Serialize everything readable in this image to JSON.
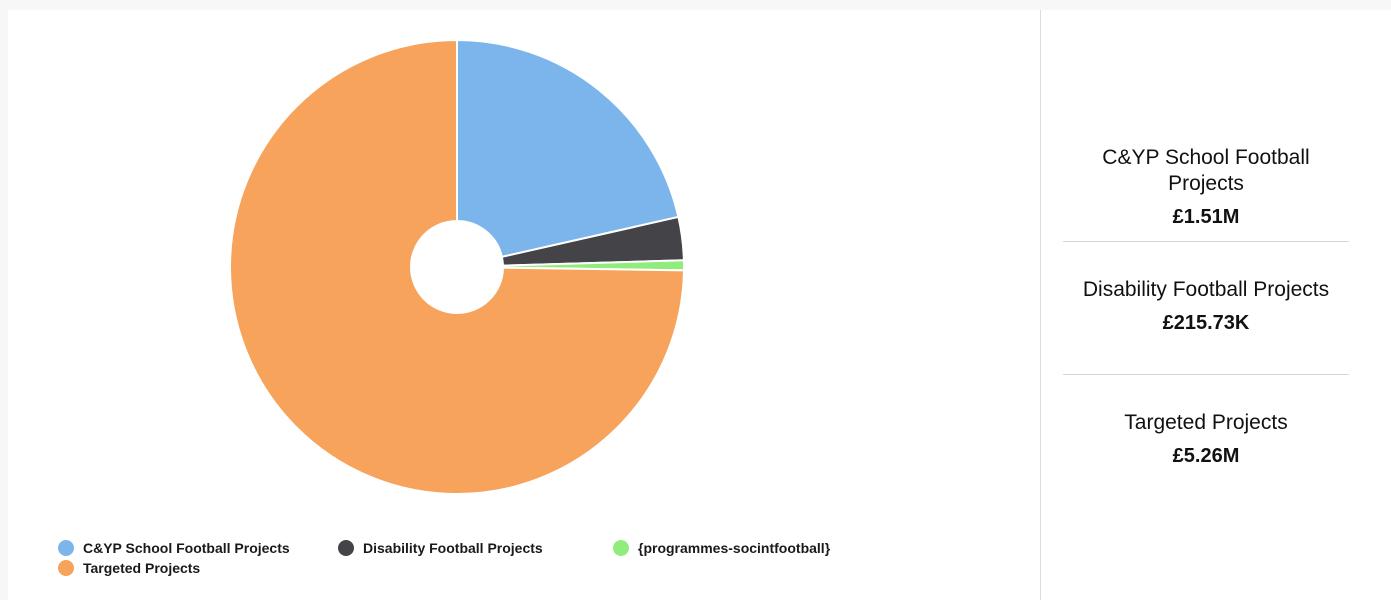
{
  "chart_data": {
    "type": "pie",
    "donut": true,
    "series": [
      {
        "name": "C&YP School Football Projects",
        "value": 1.51,
        "unit": "M",
        "color": "#7cb5ec"
      },
      {
        "name": "Disability Football Projects",
        "value": 0.21573,
        "unit": "M",
        "color": "#434348"
      },
      {
        "name": "{programmes-socintfootball}",
        "value": 0.05,
        "unit": "M",
        "color": "#90ed7d"
      },
      {
        "name": "Targeted Projects",
        "value": 5.26,
        "unit": "M",
        "color": "#f7a35c"
      }
    ],
    "legend_position": "bottom-left"
  },
  "legend": {
    "items": [
      "C&YP School Football Projects",
      "Disability Football Projects",
      "{programmes-socintfootball}",
      "Targeted Projects"
    ]
  },
  "sidebar": {
    "stats": [
      {
        "name": "C&YP School Football Projects",
        "value": "£1.51M"
      },
      {
        "name": "Disability Football Projects",
        "value": "£215.73K"
      },
      {
        "name": "Targeted Projects",
        "value": "£5.26M"
      }
    ]
  }
}
